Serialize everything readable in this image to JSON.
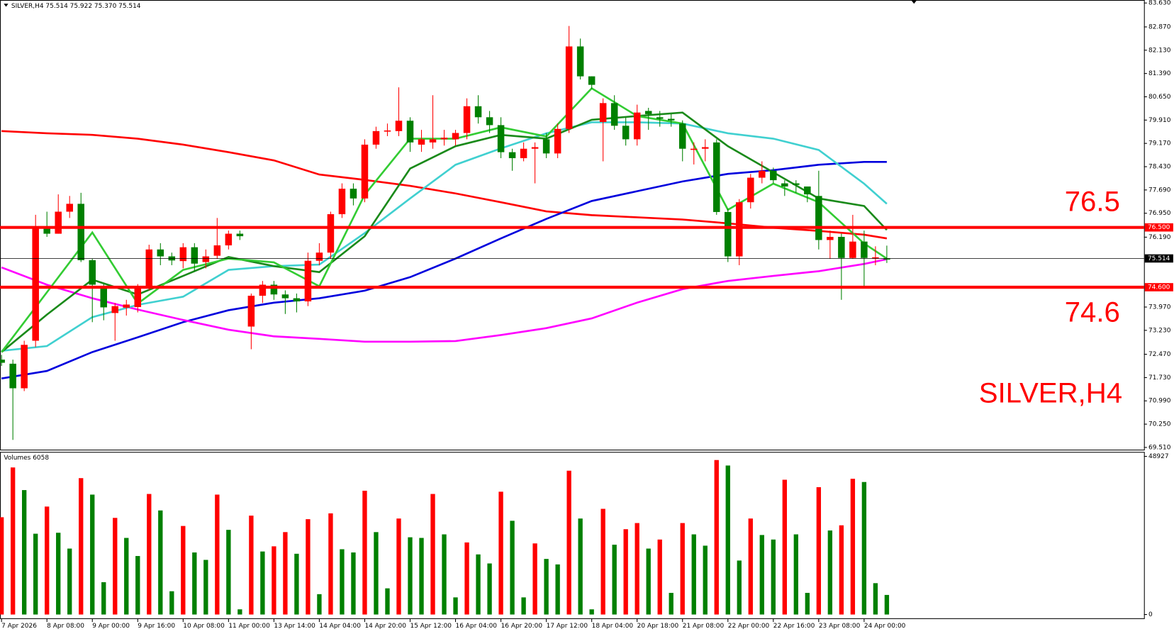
{
  "chart_data": {
    "type": "candlestick",
    "title": "SILVER,H4",
    "header": "SILVER,H4  75.514 75.922 75.370 75.514",
    "up_color": "#ff0000",
    "down_color": "#008000",
    "xticks": [
      {
        "value": 0,
        "label": "7 Apr 2026"
      },
      {
        "value": 4,
        "label": "8 Apr 08:00"
      },
      {
        "value": 8,
        "label": "9 Apr 00:00"
      },
      {
        "value": 12,
        "label": "9 Apr 16:00"
      },
      {
        "value": 16,
        "label": "10 Apr 08:00"
      },
      {
        "value": 20,
        "label": "11 Apr 00:00"
      },
      {
        "value": 24,
        "label": "13 Apr 14:00"
      },
      {
        "value": 28,
        "label": "14 Apr 04:00"
      },
      {
        "value": 32,
        "label": "14 Apr 20:00"
      },
      {
        "value": 36,
        "label": "15 Apr 12:00"
      },
      {
        "value": 40,
        "label": "16 Apr 04:00"
      },
      {
        "value": 44,
        "label": "16 Apr 20:00"
      },
      {
        "value": 48,
        "label": "17 Apr 12:00"
      },
      {
        "value": 52,
        "label": "18 Apr 04:00"
      },
      {
        "value": 56,
        "label": "20 Apr 18:00"
      },
      {
        "value": 60,
        "label": "21 Apr 08:00"
      },
      {
        "value": 64,
        "label": "22 Apr 00:00"
      },
      {
        "value": 68,
        "label": "22 Apr 16:00"
      },
      {
        "value": 72,
        "label": "23 Apr 08:00"
      },
      {
        "value": 76,
        "label": "24 Apr 00:00"
      }
    ],
    "ylim": [
      69.44,
      83.725
    ],
    "yticks": [
      {
        "value": 83.63,
        "label": "83.630"
      },
      {
        "value": 82.87,
        "label": "82.870"
      },
      {
        "value": 82.13,
        "label": "82.130"
      },
      {
        "value": 81.39,
        "label": "81.390"
      },
      {
        "value": 80.65,
        "label": "80.650"
      },
      {
        "value": 79.91,
        "label": "79.910"
      },
      {
        "value": 79.17,
        "label": "79.170"
      },
      {
        "value": 78.43,
        "label": "78.430"
      },
      {
        "value": 77.69,
        "label": "77.690"
      },
      {
        "value": 76.95,
        "label": "76.950"
      },
      {
        "value": 76.19,
        "label": "76.190"
      },
      {
        "value": 73.97,
        "label": "73.970"
      },
      {
        "value": 73.23,
        "label": "73.230"
      },
      {
        "value": 72.47,
        "label": "72.470"
      },
      {
        "value": 71.73,
        "label": "71.730"
      },
      {
        "value": 70.99,
        "label": "70.990"
      },
      {
        "value": 70.25,
        "label": "70.250"
      },
      {
        "value": 69.51,
        "label": "69.510"
      }
    ],
    "open": [
      72.3,
      72.17,
      71.39,
      72.9,
      76.5,
      76.3,
      77.0,
      77.25,
      75.46,
      74.6,
      73.78,
      73.95,
      73.97,
      74.56,
      75.8,
      75.58,
      75.43,
      75.87,
      75.4,
      75.6,
      75.93,
      76.3,
      73.35,
      74.33,
      74.68,
      74.37,
      74.25,
      74.15,
      75.44,
      75.7,
      76.92,
      77.73,
      77.42,
      79.13,
      79.56,
      79.56,
      79.89,
      79.13,
      79.2,
      79.3,
      79.3,
      79.5,
      80.35,
      80.0,
      79.75,
      78.89,
      78.7,
      79.0,
      79.3,
      78.85,
      79.63,
      82.25,
      81.3,
      79.85,
      80.45,
      79.73,
      79.3,
      80.2,
      80.0,
      79.95,
      79.8,
      78.98,
      79.0,
      79.2,
      76.99,
      75.58,
      77.3,
      78.08,
      78.3,
      77.9,
      77.9,
      77.8,
      77.5,
      76.1,
      76.2,
      75.53,
      76.05,
      75.53,
      75.514
    ],
    "high": [
      72.45,
      72.3,
      72.9,
      76.9,
      77.0,
      77.55,
      77.5,
      77.6,
      75.5,
      74.7,
      74.1,
      74.2,
      74.7,
      75.95,
      76.0,
      75.7,
      76.0,
      76.0,
      75.8,
      76.8,
      76.4,
      76.4,
      74.4,
      74.8,
      74.8,
      74.5,
      74.4,
      75.7,
      76.0,
      77.0,
      77.9,
      77.9,
      79.3,
      79.7,
      79.8,
      80.95,
      80.0,
      79.6,
      80.7,
      79.6,
      79.6,
      80.6,
      80.7,
      80.2,
      80.0,
      79.0,
      79.2,
      79.2,
      79.5,
      79.8,
      82.9,
      82.5,
      81.3,
      80.6,
      80.7,
      80.0,
      80.4,
      80.3,
      80.2,
      80.1,
      79.9,
      79.2,
      79.3,
      79.3,
      77.1,
      77.4,
      78.2,
      78.6,
      78.4,
      78.0,
      78.0,
      77.8,
      78.3,
      76.4,
      76.3,
      76.9,
      76.4,
      75.9,
      75.922
    ],
    "low": [
      72.1,
      69.75,
      71.3,
      72.7,
      76.2,
      76.3,
      76.8,
      75.4,
      73.49,
      73.55,
      72.9,
      73.7,
      73.8,
      74.5,
      75.3,
      75.3,
      75.2,
      75.1,
      75.2,
      75.5,
      75.8,
      76.1,
      72.63,
      74.1,
      74.2,
      73.75,
      73.8,
      74.0,
      75.3,
      75.5,
      76.8,
      77.2,
      77.3,
      79.0,
      79.4,
      79.4,
      78.9,
      78.9,
      79.0,
      79.1,
      79.1,
      79.3,
      79.8,
      79.5,
      78.7,
      78.3,
      78.6,
      77.9,
      78.7,
      78.7,
      79.5,
      81.2,
      80.9,
      78.6,
      79.6,
      79.1,
      79.1,
      79.6,
      79.7,
      79.7,
      78.6,
      78.5,
      78.6,
      76.9,
      75.4,
      75.3,
      77.1,
      77.9,
      77.9,
      77.5,
      77.6,
      77.3,
      75.8,
      75.5,
      74.2,
      75.5,
      74.6,
      75.3,
      75.37
    ],
    "close": [
      72.2,
      71.39,
      72.77,
      76.51,
      76.3,
      77.0,
      77.25,
      75.46,
      74.68,
      73.96,
      74.0,
      74.05,
      74.56,
      75.8,
      75.58,
      75.45,
      75.87,
      75.35,
      75.58,
      75.93,
      76.3,
      76.22,
      74.33,
      74.68,
      74.37,
      74.25,
      74.15,
      75.44,
      75.7,
      76.92,
      77.73,
      77.42,
      79.13,
      79.56,
      79.58,
      79.89,
      79.2,
      79.3,
      79.3,
      79.35,
      79.5,
      80.35,
      80.0,
      79.75,
      78.89,
      78.7,
      79.0,
      79.05,
      78.85,
      79.63,
      82.25,
      81.3,
      81.03,
      80.45,
      79.73,
      79.3,
      80.15,
      80.1,
      79.95,
      79.9,
      79.0,
      79.0,
      79.05,
      76.99,
      75.58,
      77.3,
      78.08,
      78.3,
      78.0,
      77.8,
      77.85,
      77.55,
      76.1,
      76.2,
      75.53,
      76.05,
      75.53,
      75.55,
      75.514
    ],
    "moving_averages": [
      {
        "color": "#ff0000",
        "x": [
          0,
          4,
          8,
          12,
          16,
          20,
          24,
          28,
          32,
          36,
          40,
          44,
          48,
          52,
          56,
          60,
          64,
          68,
          72,
          76,
          78
        ],
        "values": [
          79.56,
          79.49,
          79.44,
          79.32,
          79.13,
          78.89,
          78.63,
          78.18,
          78.01,
          77.82,
          77.58,
          77.3,
          77.01,
          76.89,
          76.82,
          76.75,
          76.63,
          76.49,
          76.39,
          76.27,
          76.15
        ]
      },
      {
        "color": "#0000dd",
        "x": [
          0,
          4,
          8,
          12,
          16,
          20,
          24,
          28,
          32,
          36,
          40,
          44,
          48,
          52,
          56,
          60,
          64,
          68,
          72,
          76,
          78
        ],
        "values": [
          71.7,
          71.94,
          72.54,
          73.01,
          73.49,
          73.87,
          74.11,
          74.25,
          74.49,
          74.92,
          75.51,
          76.15,
          76.77,
          77.34,
          77.65,
          77.96,
          78.2,
          78.32,
          78.49,
          78.58,
          78.58
        ]
      },
      {
        "color": "#ff00ff",
        "x": [
          0,
          4,
          8,
          12,
          16,
          20,
          24,
          28,
          32,
          36,
          40,
          44,
          48,
          52,
          56,
          60,
          64,
          68,
          72,
          76,
          78
        ],
        "values": [
          75.23,
          74.68,
          74.25,
          73.89,
          73.56,
          73.25,
          73.04,
          72.96,
          72.87,
          72.87,
          72.89,
          73.08,
          73.3,
          73.61,
          74.11,
          74.54,
          74.8,
          74.96,
          75.11,
          75.34,
          75.49
        ]
      },
      {
        "color": "#40d0d0",
        "x": [
          0,
          4,
          8,
          12,
          16,
          20,
          24,
          28,
          32,
          36,
          40,
          44,
          48,
          52,
          56,
          60,
          64,
          68,
          72,
          76,
          78
        ],
        "values": [
          72.58,
          72.73,
          73.65,
          74.04,
          74.3,
          75.15,
          75.27,
          75.32,
          76.32,
          77.42,
          78.49,
          79.01,
          79.49,
          79.84,
          79.84,
          79.8,
          79.49,
          79.32,
          78.96,
          77.89,
          77.25
        ]
      },
      {
        "color": "#1a8a1a",
        "x": [
          0,
          4,
          8,
          12,
          16,
          20,
          24,
          28,
          32,
          36,
          40,
          44,
          48,
          52,
          56,
          60,
          64,
          68,
          72,
          76,
          78
        ],
        "values": [
          72.54,
          73.73,
          74.84,
          74.37,
          74.96,
          75.56,
          75.27,
          75.08,
          76.22,
          78.37,
          79.08,
          79.44,
          79.32,
          79.92,
          80.04,
          80.15,
          79.08,
          78.25,
          77.42,
          77.18,
          76.42
        ]
      },
      {
        "color": "#33cc33",
        "x": [
          0,
          4,
          8,
          12,
          16,
          20,
          24,
          28,
          32,
          36,
          40,
          44,
          48,
          52,
          56,
          60,
          64,
          68,
          72,
          76,
          78
        ],
        "values": [
          72.54,
          74.44,
          76.34,
          74.08,
          75.15,
          75.51,
          75.39,
          74.63,
          77.54,
          79.32,
          79.32,
          79.68,
          79.39,
          80.92,
          80.04,
          79.8,
          77.06,
          77.89,
          77.3,
          75.99,
          75.51
        ]
      }
    ],
    "levels": [
      {
        "value": 76.5,
        "label": "76.500",
        "color": "#ff0000"
      },
      {
        "value": 74.6,
        "label": "74.600",
        "color": "#ff0000"
      }
    ],
    "price": 75.514,
    "volume": {
      "label": "Volumes 6058",
      "ylim": [
        0,
        48927
      ],
      "yticks": [
        48927,
        0
      ],
      "values": [
        30100,
        45500,
        38500,
        25000,
        33400,
        25300,
        20400,
        42200,
        37100,
        10000,
        29900,
        23700,
        18100,
        37300,
        32200,
        7200,
        27400,
        19200,
        16900,
        37100,
        26200,
        1600,
        30600,
        19500,
        21100,
        25500,
        18800,
        29500,
        6300,
        31300,
        20200,
        19200,
        38300,
        25500,
        8100,
        29700,
        23900,
        23700,
        37300,
        24800,
        5300,
        22300,
        18600,
        15800,
        38000,
        29000,
        5300,
        22000,
        17200,
        15500,
        44500,
        29700,
        1600,
        32700,
        21600,
        26400,
        28300,
        20400,
        23200,
        6700,
        28300,
        24800,
        21300,
        47800,
        46100,
        16700,
        29700,
        24600,
        23200,
        41700,
        24800,
        6700,
        39400,
        26000,
        27600,
        42000,
        41000,
        9700,
        6058
      ]
    }
  }
}
